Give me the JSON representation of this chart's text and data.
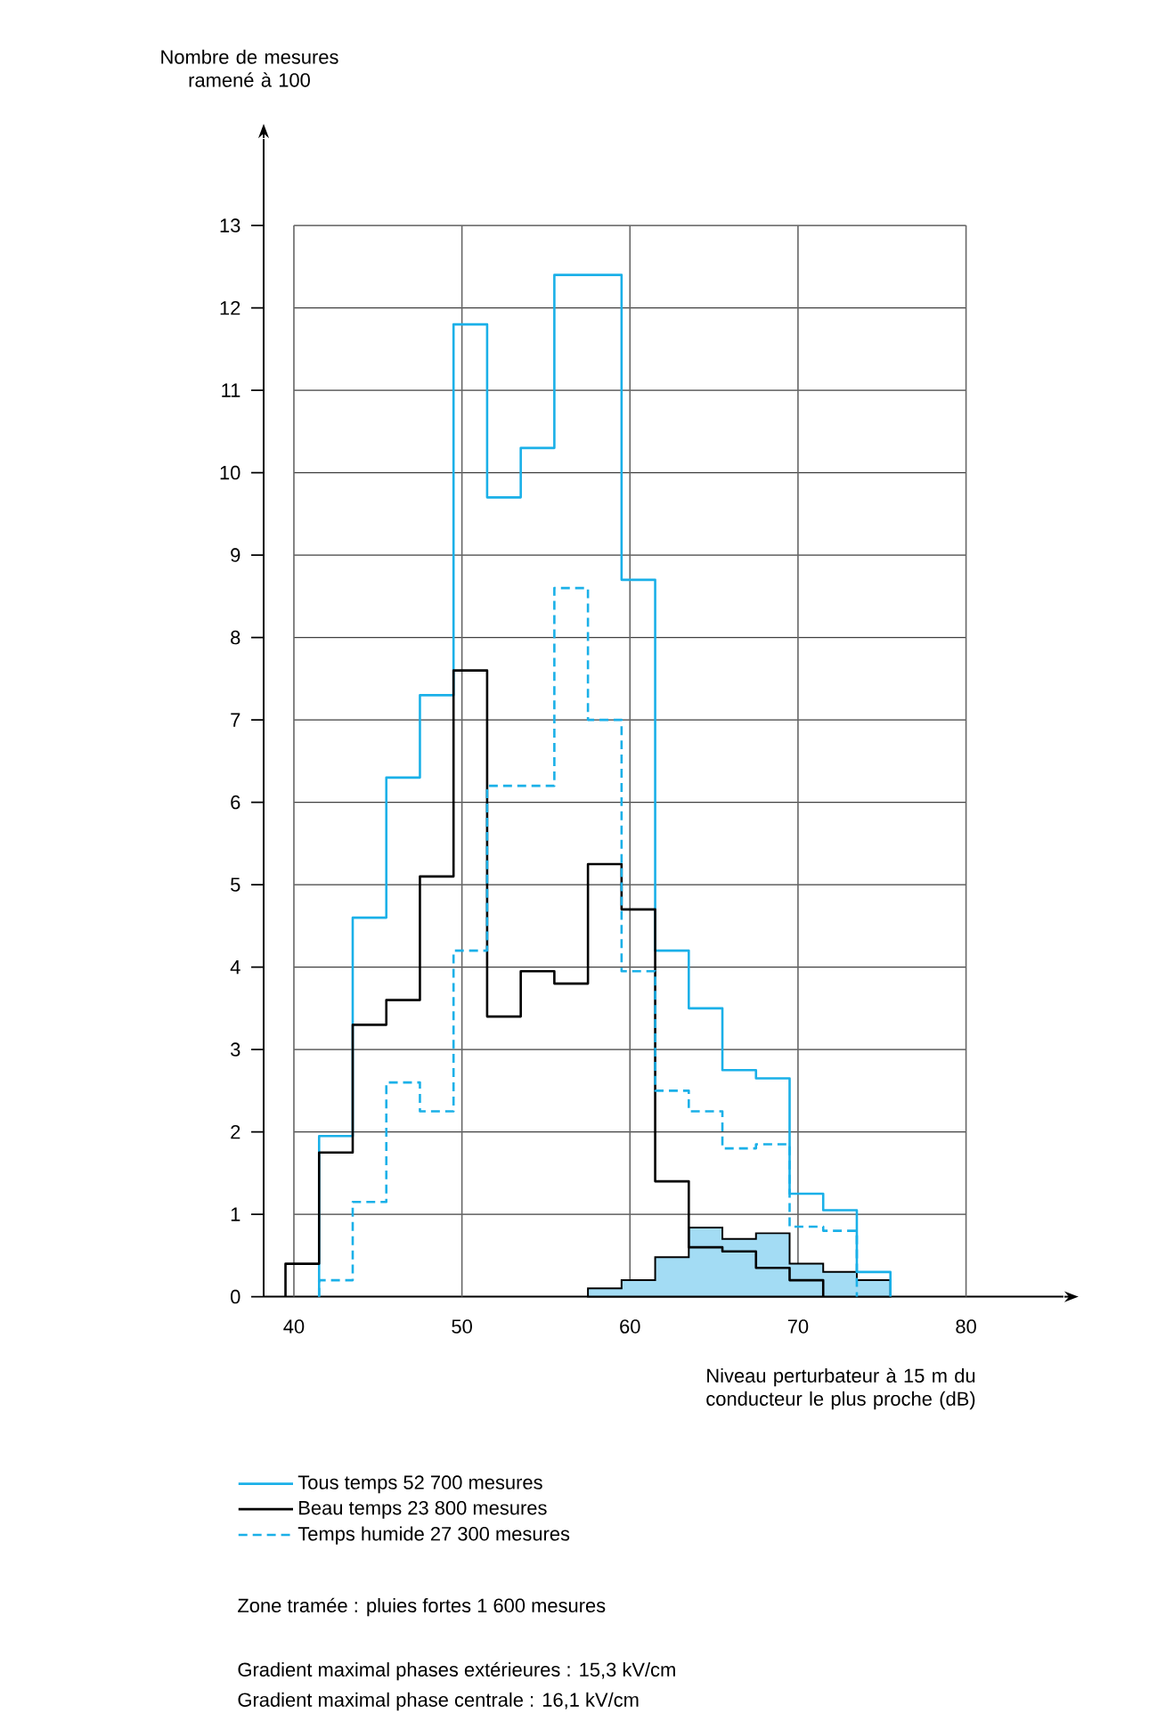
{
  "chart_data": {
    "type": "step",
    "ylabel": "Nombre de mesures ramené à 100",
    "xlabel": "Niveau perturbateur à 15 m du conducteur le plus proche (dB)",
    "series": [
      {
        "name": "Tous temps 52 700 mesures",
        "color": "#1ab0e8",
        "line_style": "solid",
        "x": [
          41.5,
          41.5,
          43.5,
          45.5,
          47.5,
          49.5,
          51.5,
          53.5,
          55.5,
          57.5,
          59.5,
          61.5,
          63.5,
          65.5,
          67.5,
          69.5,
          71.5,
          73.5,
          75.5
        ],
        "values": [
          0,
          1.95,
          4.6,
          6.3,
          7.3,
          11.8,
          9.7,
          10.3,
          12.4,
          12.4,
          8.7,
          4.2,
          3.5,
          2.75,
          2.65,
          1.25,
          1.05,
          0.3,
          0
        ]
      },
      {
        "name": "Beau temps 23 800 mesures",
        "color": "#000000",
        "line_style": "solid",
        "x": [
          39.5,
          39.5,
          41.5,
          43.5,
          45.5,
          47.5,
          49.5,
          51.5,
          53.5,
          55.5,
          57.5,
          59.5,
          61.5,
          63.5,
          65.5,
          67.5,
          69.5,
          71.5
        ],
        "values": [
          0,
          0.4,
          1.75,
          3.3,
          3.6,
          5.1,
          7.6,
          3.4,
          3.95,
          3.8,
          5.25,
          4.7,
          1.4,
          0.6,
          0.55,
          0.35,
          0.2,
          0
        ]
      },
      {
        "name": "Temps humide 27 300 mesures",
        "color": "#1ab0e8",
        "line_style": "dashed",
        "x": [
          41.5,
          41.5,
          43.5,
          45.5,
          47.5,
          49.5,
          51.5,
          53.5,
          55.5,
          57.5,
          59.5,
          61.5,
          63.5,
          65.5,
          67.5,
          69.5,
          71.5,
          73.5
        ],
        "values": [
          0,
          0.2,
          1.15,
          2.6,
          2.25,
          4.2,
          6.2,
          6.2,
          8.6,
          7.0,
          3.95,
          2.5,
          2.25,
          1.8,
          1.85,
          0.85,
          0.8,
          0
        ]
      },
      {
        "type": "histogram",
        "color": "#a3dcf4",
        "bins": [
          57.5,
          59.5,
          61.5,
          63.5,
          65.5,
          67.5,
          69.5,
          71.5,
          73.5,
          75.5
        ],
        "values": [
          0.1,
          0.2,
          0.48,
          0.84,
          0.7,
          0.77,
          0.4,
          0.3,
          0.2
        ]
      }
    ],
    "xlim": [
      38.2,
      85.8
    ],
    "ylim": [
      0,
      14.05
    ],
    "xticks": [
      40,
      50,
      60,
      70,
      80
    ],
    "yticks": [
      0,
      1,
      2,
      3,
      4,
      5,
      6,
      7,
      8,
      9,
      10,
      11,
      12,
      13
    ],
    "grid": true,
    "legend": "bottom",
    "annotations": [
      "Zone tramée : pluies fortes 1 600 mesures",
      "Gradient maximal phases extérieures : 15,3 kV/cm",
      "Gradient maximal phase centrale : 16,1 kV/cm"
    ]
  }
}
